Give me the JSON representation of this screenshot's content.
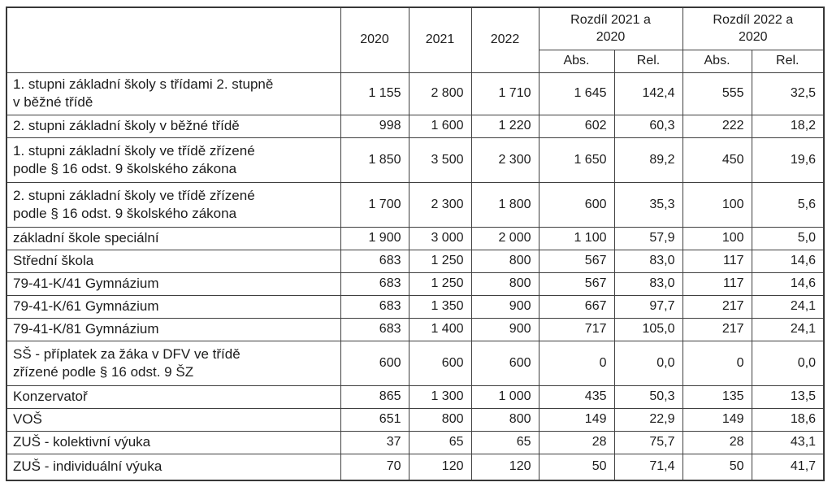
{
  "table": {
    "header": {
      "corner": "",
      "years": [
        "2020",
        "2021",
        "2022"
      ],
      "groups": [
        {
          "label": "Rozdíl 2021 a\n2020"
        },
        {
          "label": "Rozdíl 2022 a\n2020"
        }
      ],
      "subcols": [
        "Abs.",
        "Rel.",
        "Abs.",
        "Rel."
      ]
    },
    "rows": [
      {
        "label": "1. stupni základní školy s třídami 2. stupně\nv běžné třídě",
        "values": [
          "1 155",
          "2 800",
          "1 710",
          "1 645",
          "142,4",
          "555",
          "32,5"
        ]
      },
      {
        "label": "2. stupni základní školy v běžné třídě",
        "values": [
          "998",
          "1 600",
          "1 220",
          "602",
          "60,3",
          "222",
          "18,2"
        ]
      },
      {
        "label": "1. stupni základní školy ve třídě zřízené\npodle § 16 odst. 9 školského zákona",
        "values": [
          "1 850",
          "3 500",
          "2 300",
          "1 650",
          "89,2",
          "450",
          "19,6"
        ]
      },
      {
        "label": "2. stupni základní školy ve třídě zřízené\npodle § 16 odst. 9 školského zákona",
        "values": [
          "1 700",
          "2 300",
          "1 800",
          "600",
          "35,3",
          "100",
          "5,6"
        ]
      },
      {
        "label": "základní škole speciální",
        "values": [
          "1 900",
          "3 000",
          "2 000",
          "1 100",
          "57,9",
          "100",
          "5,0"
        ]
      },
      {
        "label": "Střední škola",
        "values": [
          "683",
          "1 250",
          "800",
          "567",
          "83,0",
          "117",
          "14,6"
        ]
      },
      {
        "label": "79-41-K/41 Gymnázium",
        "values": [
          "683",
          "1 250",
          "800",
          "567",
          "83,0",
          "117",
          "14,6"
        ]
      },
      {
        "label": "79-41-K/61 Gymnázium",
        "values": [
          "683",
          "1 350",
          "900",
          "667",
          "97,7",
          "217",
          "24,1"
        ]
      },
      {
        "label": "79-41-K/81 Gymnázium",
        "values": [
          "683",
          "1 400",
          "900",
          "717",
          "105,0",
          "217",
          "24,1"
        ]
      },
      {
        "label": "SŠ - příplatek za žáka v DFV ve třídě\nzřízené podle § 16 odst. 9 ŠZ",
        "values": [
          "600",
          "600",
          "600",
          "0",
          "0,0",
          "0",
          "0,0"
        ]
      },
      {
        "label": "Konzervatoř",
        "values": [
          "865",
          "1 300",
          "1 000",
          "435",
          "50,3",
          "135",
          "13,5"
        ]
      },
      {
        "label": "VOŠ",
        "values": [
          "651",
          "800",
          "800",
          "149",
          "22,9",
          "149",
          "18,6"
        ]
      },
      {
        "label": "ZUŠ - kolektivní výuka",
        "values": [
          "37",
          "65",
          "65",
          "28",
          "75,7",
          "28",
          "43,1"
        ]
      },
      {
        "label": "ZUŠ - individuální výuka",
        "values": [
          "70",
          "120",
          "120",
          "50",
          "71,4",
          "50",
          "41,7"
        ]
      }
    ]
  },
  "colors": {
    "background": "#ffffff",
    "border_outer": "#383838",
    "border_inner": "#404040",
    "text": "#1c1c1c"
  }
}
